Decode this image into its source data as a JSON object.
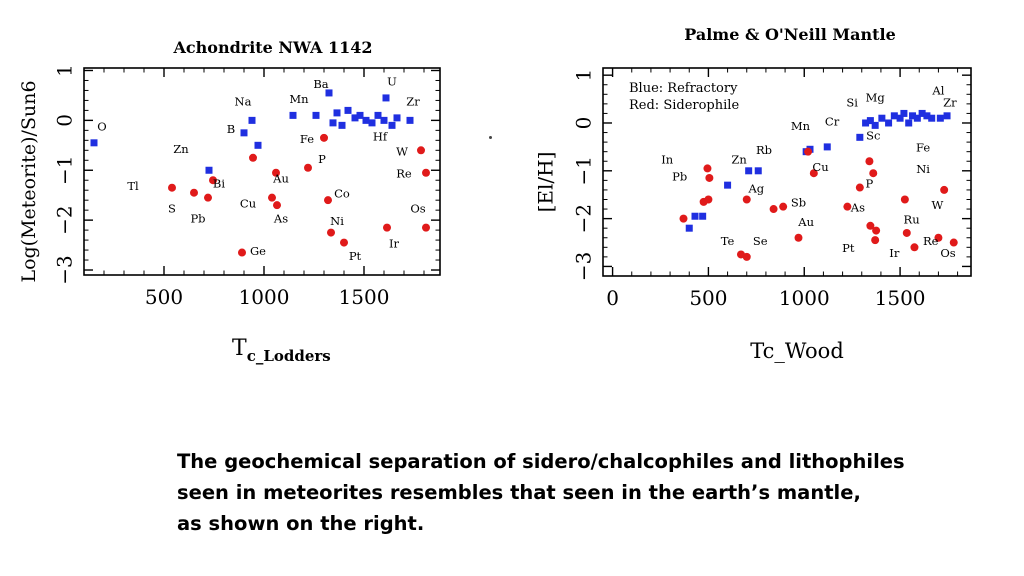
{
  "caption": {
    "line1": "The geochemical separation of sidero/chalcophiles and lithophiles",
    "line2": "seen in meteorites resembles that seen in the earth’s mantle,",
    "line3": "as shown on the right."
  },
  "colors": {
    "refractory": "#1f2fe0",
    "siderophile": "#e01a1a",
    "axis": "#000000"
  },
  "chart_data": [
    {
      "type": "scatter",
      "title": "Achondrite NWA 1142",
      "xlabel_main": "T",
      "xlabel_sub": "c_Lodders",
      "ylabel": "Log(Meteorite)/Sun6",
      "xlim": [
        100,
        1880
      ],
      "ylim": [
        -3.1,
        1.05
      ],
      "x_ticks": [
        500,
        1000,
        1500
      ],
      "y_ticks": [
        1,
        0,
        -1,
        -2,
        -3
      ],
      "y_tick_labels": [
        "1",
        "0",
        "−1",
        "−2",
        "−3"
      ],
      "grid": false,
      "series": [
        {
          "marker": "square",
          "color": "#1f2fe0",
          "points": [
            {
              "x": 150,
              "y": -0.45,
              "label": "O"
            },
            {
              "x": 1325,
              "y": 0.55,
              "label": "Ba"
            },
            {
              "x": 1610,
              "y": 0.45,
              "label": "U"
            },
            {
              "x": 1260,
              "y": 0.1
            },
            {
              "x": 1345,
              "y": -0.05
            },
            {
              "x": 1365,
              "y": 0.15
            },
            {
              "x": 1390,
              "y": -0.1
            },
            {
              "x": 1420,
              "y": 0.2
            },
            {
              "x": 1455,
              "y": 0.05
            },
            {
              "x": 1480,
              "y": 0.1
            },
            {
              "x": 1510,
              "y": 0.0
            },
            {
              "x": 1540,
              "y": -0.05
            },
            {
              "x": 1570,
              "y": 0.1
            },
            {
              "x": 1600,
              "y": 0.0
            },
            {
              "x": 1640,
              "y": -0.1
            },
            {
              "x": 1665,
              "y": 0.05
            },
            {
              "x": 1730,
              "y": 0.0
            },
            {
              "x": 970,
              "y": -0.5
            },
            {
              "x": 940,
              "y": 0.0
            },
            {
              "x": 1145,
              "y": 0.1
            },
            {
              "x": 900,
              "y": -0.25
            },
            {
              "x": 725,
              "y": -1.0
            }
          ]
        },
        {
          "marker": "circle",
          "color": "#e01a1a",
          "points": [
            {
              "x": 540,
              "y": -1.35
            },
            {
              "x": 650,
              "y": -1.45
            },
            {
              "x": 720,
              "y": -1.55
            },
            {
              "x": 745,
              "y": -1.2
            },
            {
              "x": 945,
              "y": -0.75
            },
            {
              "x": 1060,
              "y": -1.05
            },
            {
              "x": 1040,
              "y": -1.55
            },
            {
              "x": 1065,
              "y": -1.7
            },
            {
              "x": 890,
              "y": -2.65
            },
            {
              "x": 1220,
              "y": -0.95
            },
            {
              "x": 1300,
              "y": -0.35
            },
            {
              "x": 1320,
              "y": -1.6
            },
            {
              "x": 1335,
              "y": -2.25
            },
            {
              "x": 1400,
              "y": -2.45
            },
            {
              "x": 1615,
              "y": -2.15
            },
            {
              "x": 1785,
              "y": -0.6
            },
            {
              "x": 1810,
              "y": -1.05
            },
            {
              "x": 1810,
              "y": -2.15
            }
          ]
        }
      ],
      "annotations": [
        {
          "text": "O",
          "x": 190,
          "y": -0.2
        },
        {
          "text": "Ba",
          "x": 1285,
          "y": 0.65
        },
        {
          "text": "U",
          "x": 1640,
          "y": 0.7
        },
        {
          "text": "Na",
          "x": 895,
          "y": 0.3
        },
        {
          "text": "Mn",
          "x": 1175,
          "y": 0.35
        },
        {
          "text": "Zr",
          "x": 1745,
          "y": 0.3
        },
        {
          "text": "B",
          "x": 835,
          "y": -0.25
        },
        {
          "text": "Fe",
          "x": 1215,
          "y": -0.45
        },
        {
          "text": "Hf",
          "x": 1580,
          "y": -0.4
        },
        {
          "text": "Zn",
          "x": 585,
          "y": -0.65
        },
        {
          "text": "W",
          "x": 1690,
          "y": -0.7
        },
        {
          "text": "P",
          "x": 1290,
          "y": -0.85
        },
        {
          "text": "Au",
          "x": 1085,
          "y": -1.25
        },
        {
          "text": "Re",
          "x": 1700,
          "y": -1.15
        },
        {
          "text": "Tl",
          "x": 345,
          "y": -1.4
        },
        {
          "text": "Bi",
          "x": 775,
          "y": -1.35
        },
        {
          "text": "Co",
          "x": 1390,
          "y": -1.55
        },
        {
          "text": "Cu",
          "x": 920,
          "y": -1.75
        },
        {
          "text": "Os",
          "x": 1770,
          "y": -1.85
        },
        {
          "text": "S",
          "x": 540,
          "y": -1.85
        },
        {
          "text": "Pb",
          "x": 670,
          "y": -2.05
        },
        {
          "text": "As",
          "x": 1085,
          "y": -2.05
        },
        {
          "text": "Ni",
          "x": 1365,
          "y": -2.1
        },
        {
          "text": "Ir",
          "x": 1650,
          "y": -2.55
        },
        {
          "text": "Ge",
          "x": 970,
          "y": -2.7
        },
        {
          "text": "Pt",
          "x": 1455,
          "y": -2.8
        }
      ]
    },
    {
      "type": "scatter",
      "title": "Palme & O'Neill Mantle",
      "xlabel": "Tc_Wood",
      "ylabel": "[El/H]",
      "legend": [
        "Blue: Refractory",
        "Red: Siderophile"
      ],
      "legend_position": "top-left",
      "xlim": [
        -50,
        1870
      ],
      "ylim": [
        -3.2,
        1.15
      ],
      "x_ticks": [
        0,
        500,
        1000,
        1500
      ],
      "y_ticks": [
        1,
        0,
        -1,
        -2,
        -3
      ],
      "y_tick_labels": [
        "1",
        "0",
        "−1",
        "−2",
        "−3"
      ],
      "grid": false,
      "series": [
        {
          "marker": "square",
          "color": "#1f2fe0",
          "points": [
            {
              "x": 400,
              "y": -2.2
            },
            {
              "x": 430,
              "y": -1.95
            },
            {
              "x": 470,
              "y": -1.95
            },
            {
              "x": 600,
              "y": -1.3
            },
            {
              "x": 710,
              "y": -1.0
            },
            {
              "x": 760,
              "y": -1.0
            },
            {
              "x": 1030,
              "y": -0.55
            },
            {
              "x": 1010,
              "y": -0.6
            },
            {
              "x": 1120,
              "y": -0.5
            },
            {
              "x": 1290,
              "y": -0.3
            },
            {
              "x": 1320,
              "y": 0.0
            },
            {
              "x": 1345,
              "y": 0.05
            },
            {
              "x": 1370,
              "y": -0.05
            },
            {
              "x": 1405,
              "y": 0.1
            },
            {
              "x": 1440,
              "y": 0.0
            },
            {
              "x": 1470,
              "y": 0.15
            },
            {
              "x": 1500,
              "y": 0.1
            },
            {
              "x": 1520,
              "y": 0.2
            },
            {
              "x": 1545,
              "y": 0.0
            },
            {
              "x": 1565,
              "y": 0.15
            },
            {
              "x": 1590,
              "y": 0.1
            },
            {
              "x": 1615,
              "y": 0.2
            },
            {
              "x": 1640,
              "y": 0.15
            },
            {
              "x": 1665,
              "y": 0.1
            },
            {
              "x": 1710,
              "y": 0.1
            },
            {
              "x": 1745,
              "y": 0.15
            }
          ]
        },
        {
          "marker": "circle",
          "color": "#e01a1a",
          "points": [
            {
              "x": 370,
              "y": -2.0
            },
            {
              "x": 475,
              "y": -1.65
            },
            {
              "x": 500,
              "y": -1.6
            },
            {
              "x": 495,
              "y": -0.95
            },
            {
              "x": 505,
              "y": -1.15
            },
            {
              "x": 700,
              "y": -1.6
            },
            {
              "x": 840,
              "y": -1.8
            },
            {
              "x": 890,
              "y": -1.75
            },
            {
              "x": 1020,
              "y": -0.6
            },
            {
              "x": 1050,
              "y": -1.05
            },
            {
              "x": 1225,
              "y": -1.75
            },
            {
              "x": 1290,
              "y": -1.35
            },
            {
              "x": 1340,
              "y": -0.8
            },
            {
              "x": 1360,
              "y": -1.05
            },
            {
              "x": 1345,
              "y": -2.15
            },
            {
              "x": 1375,
              "y": -2.25
            },
            {
              "x": 1370,
              "y": -2.45
            },
            {
              "x": 970,
              "y": -2.4
            },
            {
              "x": 670,
              "y": -2.75
            },
            {
              "x": 700,
              "y": -2.8
            },
            {
              "x": 1525,
              "y": -1.6
            },
            {
              "x": 1535,
              "y": -2.3
            },
            {
              "x": 1575,
              "y": -2.6
            },
            {
              "x": 1700,
              "y": -2.4
            },
            {
              "x": 1780,
              "y": -2.5
            },
            {
              "x": 1730,
              "y": -1.4
            }
          ]
        }
      ],
      "annotations": [
        {
          "text": "Al",
          "x": 1700,
          "y": 0.6
        },
        {
          "text": "Mg",
          "x": 1370,
          "y": 0.45
        },
        {
          "text": "Zr",
          "x": 1760,
          "y": 0.35
        },
        {
          "text": "Si",
          "x": 1250,
          "y": 0.35
        },
        {
          "text": "Cr",
          "x": 1145,
          "y": -0.05
        },
        {
          "text": "Mn",
          "x": 980,
          "y": -0.15
        },
        {
          "text": "Sc",
          "x": 1360,
          "y": -0.35
        },
        {
          "text": "Fe",
          "x": 1620,
          "y": -0.6
        },
        {
          "text": "Zn",
          "x": 660,
          "y": -0.85
        },
        {
          "text": "Rb",
          "x": 790,
          "y": -0.65
        },
        {
          "text": "In",
          "x": 285,
          "y": -0.85
        },
        {
          "text": "Cu",
          "x": 1085,
          "y": -1.0
        },
        {
          "text": "Ni",
          "x": 1620,
          "y": -1.05
        },
        {
          "text": "Pb",
          "x": 350,
          "y": -1.2
        },
        {
          "text": "P",
          "x": 1340,
          "y": -1.35
        },
        {
          "text": "Ag",
          "x": 750,
          "y": -1.45
        },
        {
          "text": "Sb",
          "x": 970,
          "y": -1.75
        },
        {
          "text": "W",
          "x": 1695,
          "y": -1.8
        },
        {
          "text": "As",
          "x": 1280,
          "y": -1.85
        },
        {
          "text": "Au",
          "x": 1010,
          "y": -2.15
        },
        {
          "text": "Ru",
          "x": 1560,
          "y": -2.1
        },
        {
          "text": "Te",
          "x": 600,
          "y": -2.55
        },
        {
          "text": "Se",
          "x": 770,
          "y": -2.55
        },
        {
          "text": "Re",
          "x": 1660,
          "y": -2.55
        },
        {
          "text": "Pt",
          "x": 1230,
          "y": -2.7
        },
        {
          "text": "Ir",
          "x": 1470,
          "y": -2.8
        },
        {
          "text": "Os",
          "x": 1750,
          "y": -2.8
        }
      ]
    }
  ]
}
